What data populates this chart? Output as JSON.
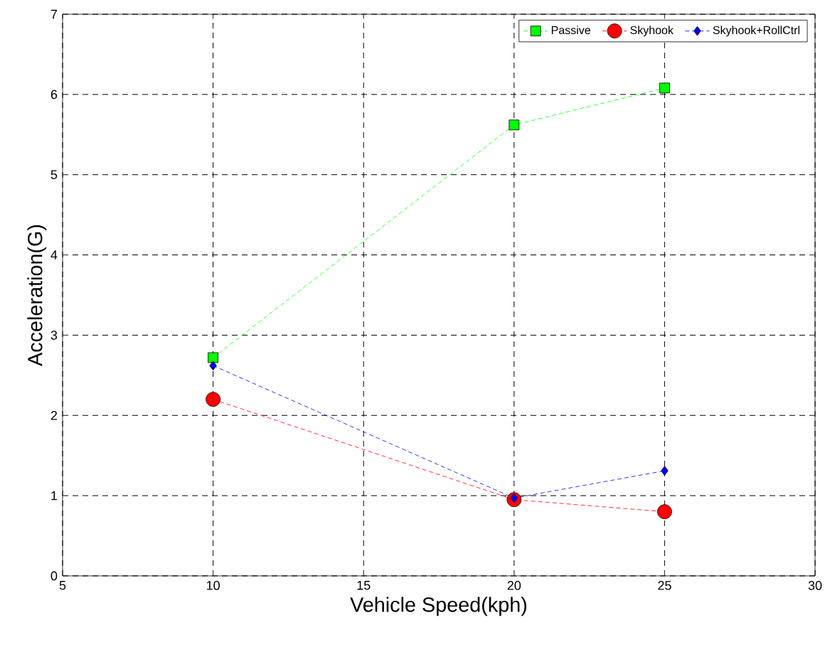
{
  "chart_data": {
    "type": "line",
    "xlabel": "Vehicle Speed(kph)",
    "ylabel": "Acceleration(G)",
    "x": [
      10,
      20,
      25
    ],
    "series": [
      {
        "name": "Passive",
        "color": "#00ff00",
        "marker": "square",
        "values": [
          2.72,
          5.62,
          6.08
        ]
      },
      {
        "name": "Skyhook",
        "color": "#ff0000",
        "marker": "circle",
        "values": [
          2.2,
          0.95,
          0.8
        ]
      },
      {
        "name": "Skyhook+RollCtrl",
        "color": "#0000ff",
        "marker": "diamond",
        "values": [
          2.62,
          0.97,
          1.31
        ]
      }
    ],
    "xlim": [
      5,
      30
    ],
    "xticks": [
      5,
      10,
      15,
      20,
      25,
      30
    ],
    "ylim": [
      0,
      7
    ],
    "yticks": [
      0,
      1,
      2,
      3,
      4,
      5,
      6,
      7
    ],
    "grid": true,
    "legend": "top right",
    "line_style": "dashed"
  }
}
